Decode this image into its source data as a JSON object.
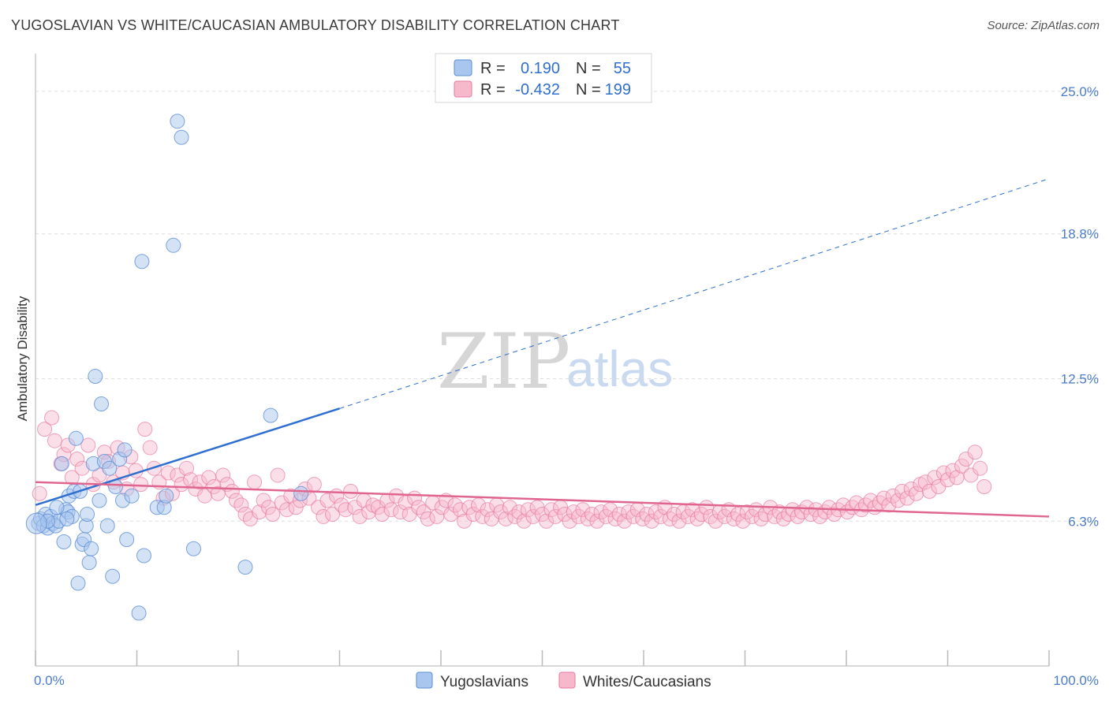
{
  "title": "YUGOSLAVIAN VS WHITE/CAUCASIAN AMBULATORY DISABILITY CORRELATION CHART",
  "source": "Source: ZipAtlas.com",
  "watermark": {
    "zip": "ZIP",
    "atlas": "atlas"
  },
  "colors": {
    "blue": "#5b8fd6",
    "blue_fill": "#a9c6ee",
    "blue_line": "#2f6fcf",
    "pink": "#e87a9e",
    "pink_fill": "#f6b9cc",
    "pink_line": "#e06690",
    "tick_text": "#4a7cc9",
    "grid": "#dddddd"
  },
  "legend": {
    "rows": [
      {
        "r_label": "R =",
        "r_value": "0.190",
        "n_label": "N =",
        "n_value": "55"
      },
      {
        "r_label": "R =",
        "r_value": "-0.432",
        "n_label": "N =",
        "n_value": "199"
      }
    ]
  },
  "chart_data": {
    "type": "scatter",
    "xlabel": "",
    "ylabel": "Ambulatory Disability",
    "xlim": [
      0,
      100
    ],
    "ylim": [
      0,
      26.3
    ],
    "x_tick_labels": [
      "0.0%",
      "100.0%"
    ],
    "y_ticks": [
      6.3,
      12.5,
      18.8,
      25.0
    ],
    "y_tick_labels": [
      "6.3%",
      "12.5%",
      "18.8%",
      "25.0%"
    ],
    "grid": "horizontal dashed",
    "legend_position": "top-center",
    "series": [
      {
        "name": "Yugoslavians",
        "r": 0.19,
        "n": 55,
        "trend": {
          "x0": 0,
          "y0": 7.0,
          "x_solid_end": 30,
          "y_solid_end": 11.2,
          "x1": 100,
          "y1": 21.2
        },
        "points": [
          [
            0.3,
            6.2
          ],
          [
            0.5,
            6.4
          ],
          [
            0.8,
            6.1
          ],
          [
            1.0,
            6.6
          ],
          [
            1.2,
            6.0
          ],
          [
            1.5,
            6.5
          ],
          [
            1.7,
            6.2
          ],
          [
            2.0,
            6.1
          ],
          [
            2.3,
            6.3
          ],
          [
            2.6,
            8.8
          ],
          [
            2.8,
            5.4
          ],
          [
            3.0,
            6.8
          ],
          [
            3.2,
            6.7
          ],
          [
            3.3,
            7.4
          ],
          [
            3.6,
            6.5
          ],
          [
            3.8,
            7.6
          ],
          [
            4.0,
            9.9
          ],
          [
            4.2,
            3.6
          ],
          [
            4.4,
            7.6
          ],
          [
            4.6,
            5.3
          ],
          [
            4.8,
            5.5
          ],
          [
            5.0,
            6.1
          ],
          [
            5.1,
            6.6
          ],
          [
            5.3,
            4.5
          ],
          [
            5.5,
            5.1
          ],
          [
            5.7,
            8.8
          ],
          [
            5.9,
            12.6
          ],
          [
            6.3,
            7.2
          ],
          [
            6.5,
            11.4
          ],
          [
            6.8,
            8.9
          ],
          [
            7.1,
            6.1
          ],
          [
            7.3,
            8.6
          ],
          [
            7.6,
            3.9
          ],
          [
            7.9,
            7.8
          ],
          [
            8.3,
            9.0
          ],
          [
            8.6,
            7.2
          ],
          [
            8.8,
            9.4
          ],
          [
            9.0,
            5.5
          ],
          [
            9.5,
            7.4
          ],
          [
            10.2,
            2.3
          ],
          [
            10.5,
            17.6
          ],
          [
            10.7,
            4.8
          ],
          [
            12.0,
            6.9
          ],
          [
            12.7,
            6.9
          ],
          [
            12.9,
            7.4
          ],
          [
            13.6,
            18.3
          ],
          [
            14.0,
            23.7
          ],
          [
            14.4,
            23.0
          ],
          [
            15.6,
            5.1
          ],
          [
            20.7,
            4.3
          ],
          [
            23.2,
            10.9
          ],
          [
            26.2,
            7.5
          ],
          [
            1.2,
            6.3
          ],
          [
            2.1,
            6.9
          ],
          [
            3.1,
            6.4
          ]
        ]
      },
      {
        "name": "Whites/Caucasians",
        "r": -0.432,
        "n": 199,
        "trend": {
          "x0": 0,
          "y0": 8.0,
          "x1": 100,
          "y1": 6.5
        },
        "points": [
          [
            0.4,
            7.5
          ],
          [
            0.9,
            10.3
          ],
          [
            1.6,
            10.8
          ],
          [
            1.9,
            9.8
          ],
          [
            2.5,
            8.8
          ],
          [
            2.8,
            9.2
          ],
          [
            3.2,
            9.6
          ],
          [
            3.6,
            8.2
          ],
          [
            4.1,
            9.0
          ],
          [
            4.6,
            8.6
          ],
          [
            5.2,
            9.6
          ],
          [
            5.7,
            7.9
          ],
          [
            6.3,
            8.3
          ],
          [
            6.8,
            9.3
          ],
          [
            7.2,
            8.9
          ],
          [
            7.7,
            8.0
          ],
          [
            8.1,
            9.5
          ],
          [
            8.6,
            8.4
          ],
          [
            9.0,
            7.7
          ],
          [
            9.4,
            9.1
          ],
          [
            9.9,
            8.5
          ],
          [
            10.4,
            7.9
          ],
          [
            10.8,
            10.3
          ],
          [
            11.3,
            9.5
          ],
          [
            11.7,
            8.6
          ],
          [
            12.2,
            8.0
          ],
          [
            12.6,
            7.3
          ],
          [
            13.1,
            8.4
          ],
          [
            13.5,
            7.5
          ],
          [
            14.0,
            8.3
          ],
          [
            14.4,
            7.9
          ],
          [
            14.9,
            8.6
          ],
          [
            15.3,
            8.1
          ],
          [
            15.8,
            7.7
          ],
          [
            16.2,
            8.0
          ],
          [
            16.7,
            7.4
          ],
          [
            17.1,
            8.2
          ],
          [
            17.6,
            7.8
          ],
          [
            18.0,
            7.5
          ],
          [
            18.5,
            8.3
          ],
          [
            18.9,
            7.9
          ],
          [
            19.4,
            7.6
          ],
          [
            19.8,
            7.2
          ],
          [
            20.3,
            7.0
          ],
          [
            20.7,
            6.6
          ],
          [
            21.2,
            6.4
          ],
          [
            21.6,
            8.0
          ],
          [
            22.1,
            6.7
          ],
          [
            22.5,
            7.2
          ],
          [
            23.0,
            6.9
          ],
          [
            23.4,
            6.6
          ],
          [
            23.9,
            8.3
          ],
          [
            24.3,
            7.1
          ],
          [
            24.8,
            6.8
          ],
          [
            25.2,
            7.4
          ],
          [
            25.7,
            6.9
          ],
          [
            26.1,
            7.2
          ],
          [
            26.6,
            7.7
          ],
          [
            27.0,
            7.3
          ],
          [
            27.5,
            7.9
          ],
          [
            27.9,
            6.9
          ],
          [
            28.4,
            6.5
          ],
          [
            28.8,
            7.2
          ],
          [
            29.3,
            6.6
          ],
          [
            29.7,
            7.4
          ],
          [
            30.2,
            7.0
          ],
          [
            30.6,
            6.8
          ],
          [
            31.1,
            7.6
          ],
          [
            31.5,
            6.9
          ],
          [
            32.0,
            6.5
          ],
          [
            32.4,
            7.2
          ],
          [
            32.9,
            6.7
          ],
          [
            33.3,
            7.0
          ],
          [
            33.8,
            6.9
          ],
          [
            34.2,
            6.6
          ],
          [
            34.7,
            7.2
          ],
          [
            35.1,
            6.8
          ],
          [
            35.6,
            7.4
          ],
          [
            36.0,
            6.7
          ],
          [
            36.5,
            7.1
          ],
          [
            36.9,
            6.6
          ],
          [
            37.4,
            7.3
          ],
          [
            37.8,
            6.9
          ],
          [
            38.3,
            6.7
          ],
          [
            38.7,
            6.4
          ],
          [
            39.2,
            7.1
          ],
          [
            39.6,
            6.5
          ],
          [
            40.1,
            6.9
          ],
          [
            40.5,
            7.2
          ],
          [
            41.0,
            6.6
          ],
          [
            41.4,
            7.0
          ],
          [
            41.9,
            6.8
          ],
          [
            42.3,
            6.3
          ],
          [
            42.8,
            6.9
          ],
          [
            43.2,
            6.6
          ],
          [
            43.7,
            7.0
          ],
          [
            44.1,
            6.5
          ],
          [
            44.6,
            6.8
          ],
          [
            45.0,
            6.4
          ],
          [
            45.5,
            7.0
          ],
          [
            45.9,
            6.7
          ],
          [
            46.4,
            6.4
          ],
          [
            46.8,
            6.9
          ],
          [
            47.3,
            6.5
          ],
          [
            47.7,
            6.7
          ],
          [
            48.2,
            6.3
          ],
          [
            48.6,
            6.8
          ],
          [
            49.1,
            6.5
          ],
          [
            49.5,
            6.9
          ],
          [
            50.0,
            6.6
          ],
          [
            50.4,
            6.3
          ],
          [
            50.9,
            6.8
          ],
          [
            51.3,
            6.5
          ],
          [
            51.8,
            6.9
          ],
          [
            52.2,
            6.6
          ],
          [
            52.7,
            6.3
          ],
          [
            53.1,
            6.7
          ],
          [
            53.6,
            6.5
          ],
          [
            54.0,
            6.8
          ],
          [
            54.5,
            6.4
          ],
          [
            54.9,
            6.6
          ],
          [
            55.4,
            6.3
          ],
          [
            55.8,
            6.7
          ],
          [
            56.3,
            6.5
          ],
          [
            56.7,
            6.8
          ],
          [
            57.2,
            6.4
          ],
          [
            57.6,
            6.6
          ],
          [
            58.1,
            6.3
          ],
          [
            58.5,
            6.7
          ],
          [
            59.0,
            6.5
          ],
          [
            59.4,
            6.8
          ],
          [
            59.9,
            6.4
          ],
          [
            60.3,
            6.6
          ],
          [
            60.8,
            6.3
          ],
          [
            61.2,
            6.7
          ],
          [
            61.7,
            6.5
          ],
          [
            62.1,
            6.9
          ],
          [
            62.6,
            6.4
          ],
          [
            63.0,
            6.6
          ],
          [
            63.5,
            6.3
          ],
          [
            63.9,
            6.7
          ],
          [
            64.4,
            6.5
          ],
          [
            64.8,
            6.8
          ],
          [
            65.3,
            6.4
          ],
          [
            65.7,
            6.6
          ],
          [
            66.2,
            6.9
          ],
          [
            66.6,
            6.5
          ],
          [
            67.1,
            6.3
          ],
          [
            67.5,
            6.7
          ],
          [
            68.0,
            6.5
          ],
          [
            68.4,
            6.8
          ],
          [
            68.9,
            6.4
          ],
          [
            69.3,
            6.6
          ],
          [
            69.8,
            6.3
          ],
          [
            70.2,
            6.7
          ],
          [
            70.7,
            6.5
          ],
          [
            71.1,
            6.8
          ],
          [
            71.6,
            6.4
          ],
          [
            72.0,
            6.6
          ],
          [
            72.5,
            6.9
          ],
          [
            72.9,
            6.5
          ],
          [
            73.4,
            6.7
          ],
          [
            73.8,
            6.4
          ],
          [
            74.3,
            6.6
          ],
          [
            74.7,
            6.8
          ],
          [
            75.2,
            6.5
          ],
          [
            75.6,
            6.7
          ],
          [
            76.1,
            6.9
          ],
          [
            76.5,
            6.6
          ],
          [
            77.0,
            6.8
          ],
          [
            77.4,
            6.5
          ],
          [
            77.9,
            6.7
          ],
          [
            78.3,
            6.9
          ],
          [
            78.8,
            6.6
          ],
          [
            79.2,
            6.8
          ],
          [
            79.7,
            7.0
          ],
          [
            80.1,
            6.7
          ],
          [
            80.6,
            6.9
          ],
          [
            81.0,
            7.1
          ],
          [
            81.5,
            6.8
          ],
          [
            81.9,
            7.0
          ],
          [
            82.4,
            7.2
          ],
          [
            82.8,
            6.9
          ],
          [
            83.3,
            7.1
          ],
          [
            83.7,
            7.3
          ],
          [
            84.2,
            7.0
          ],
          [
            84.6,
            7.4
          ],
          [
            85.1,
            7.2
          ],
          [
            85.5,
            7.6
          ],
          [
            86.0,
            7.3
          ],
          [
            86.4,
            7.7
          ],
          [
            86.9,
            7.5
          ],
          [
            87.3,
            7.9
          ],
          [
            87.8,
            8.0
          ],
          [
            88.2,
            7.6
          ],
          [
            88.7,
            8.2
          ],
          [
            89.1,
            7.8
          ],
          [
            89.6,
            8.4
          ],
          [
            90.0,
            8.1
          ],
          [
            90.5,
            8.5
          ],
          [
            90.9,
            8.2
          ],
          [
            91.4,
            8.7
          ],
          [
            91.8,
            9.0
          ],
          [
            92.3,
            8.3
          ],
          [
            92.7,
            9.3
          ],
          [
            93.2,
            8.6
          ],
          [
            93.6,
            7.8
          ]
        ]
      }
    ]
  },
  "bottom_legend": [
    {
      "label": "Yugoslavians"
    },
    {
      "label": "Whites/Caucasians"
    }
  ]
}
